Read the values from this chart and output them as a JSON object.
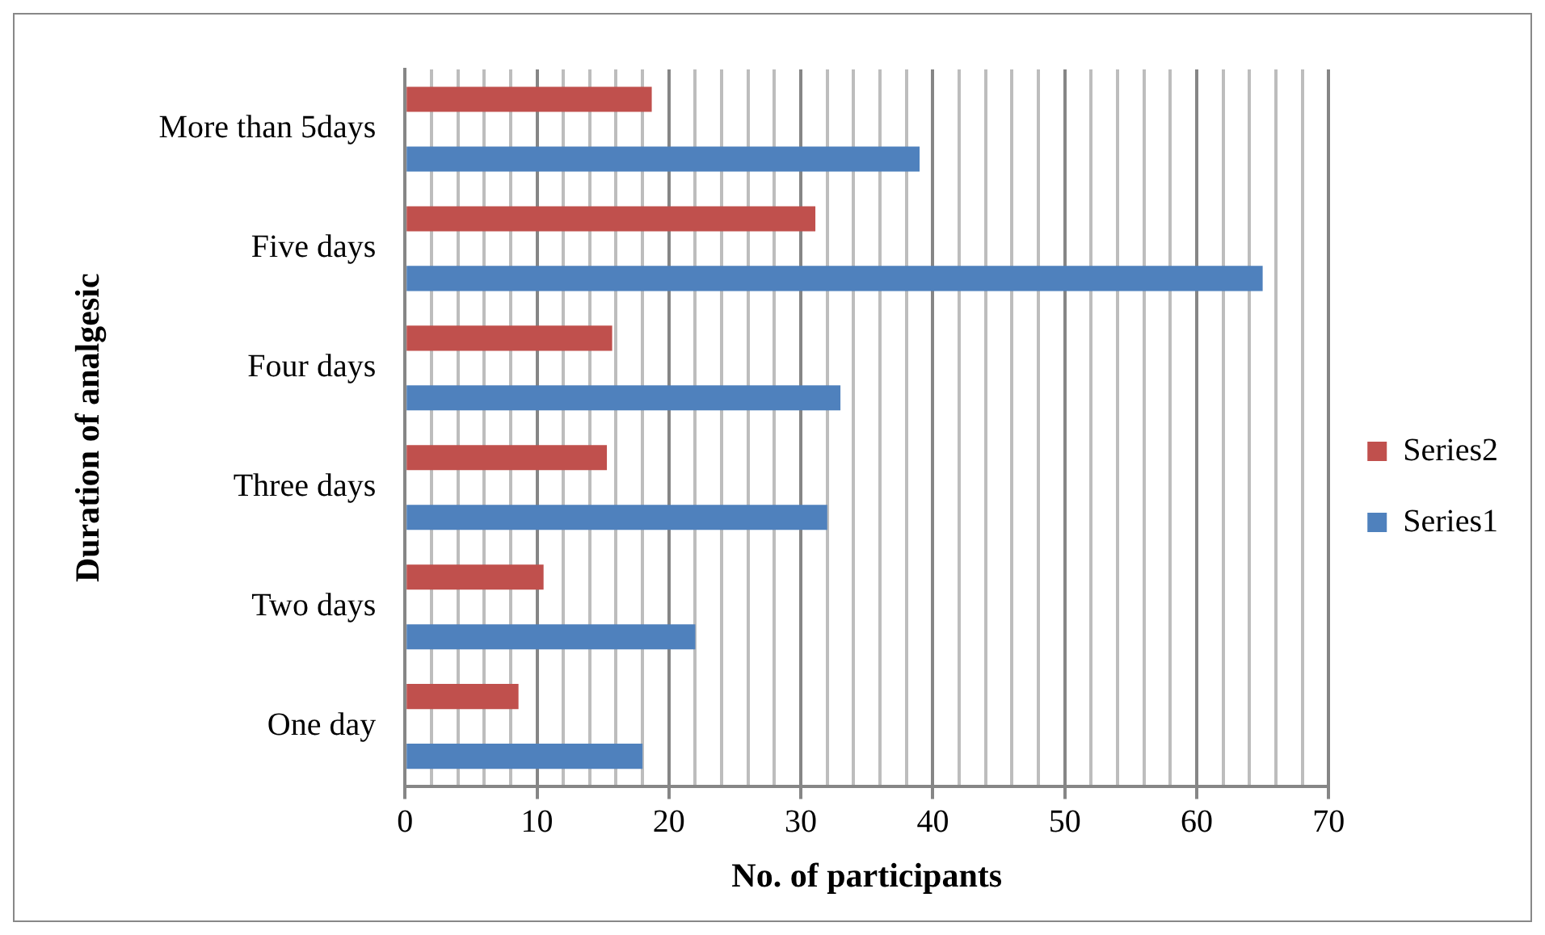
{
  "chart_data": {
    "type": "bar",
    "orientation": "horizontal",
    "xlabel": "No. of participants",
    "ylabel": "Duration of analgesic",
    "categories": [
      "More than 5days",
      "Five days",
      "Four days",
      "Three days",
      "Two days",
      "One day"
    ],
    "series": [
      {
        "name": "Series2",
        "color": "#c0504d",
        "values": [
          18.7,
          31.1,
          15.7,
          15.3,
          10.5,
          8.6
        ]
      },
      {
        "name": "Series1",
        "color": "#4f81bd",
        "values": [
          39,
          65,
          33,
          32,
          22,
          18
        ]
      }
    ],
    "xlim": [
      0,
      70
    ],
    "xticks": [
      0,
      {
        "value": 2,
        "label": null
      },
      {
        "value": 4,
        "label": null
      },
      {
        "value": 6,
        "label": null
      },
      {
        "value": 8,
        "label": null
      },
      10,
      {
        "value": 12,
        "label": null
      },
      {
        "value": 14,
        "label": null
      },
      {
        "value": 16,
        "label": null
      },
      {
        "value": 18,
        "label": null
      },
      20,
      {
        "value": 22,
        "label": null
      },
      {
        "value": 24,
        "label": null
      },
      {
        "value": 26,
        "label": null
      },
      {
        "value": 28,
        "label": null
      },
      30,
      {
        "value": 32,
        "label": null
      },
      {
        "value": 34,
        "label": null
      },
      {
        "value": 36,
        "label": null
      },
      {
        "value": 38,
        "label": null
      },
      40,
      {
        "value": 42,
        "label": null
      },
      {
        "value": 44,
        "label": null
      },
      {
        "value": 46,
        "label": null
      },
      {
        "value": 48,
        "label": null
      },
      50,
      {
        "value": 52,
        "label": null
      },
      {
        "value": 54,
        "label": null
      },
      {
        "value": 56,
        "label": null
      },
      {
        "value": 58,
        "label": null
      },
      60,
      {
        "value": 62,
        "label": null
      },
      {
        "value": 64,
        "label": null
      },
      {
        "value": 66,
        "label": null
      },
      {
        "value": 68,
        "label": null
      },
      70
    ],
    "grid": "x",
    "legend": "right"
  }
}
